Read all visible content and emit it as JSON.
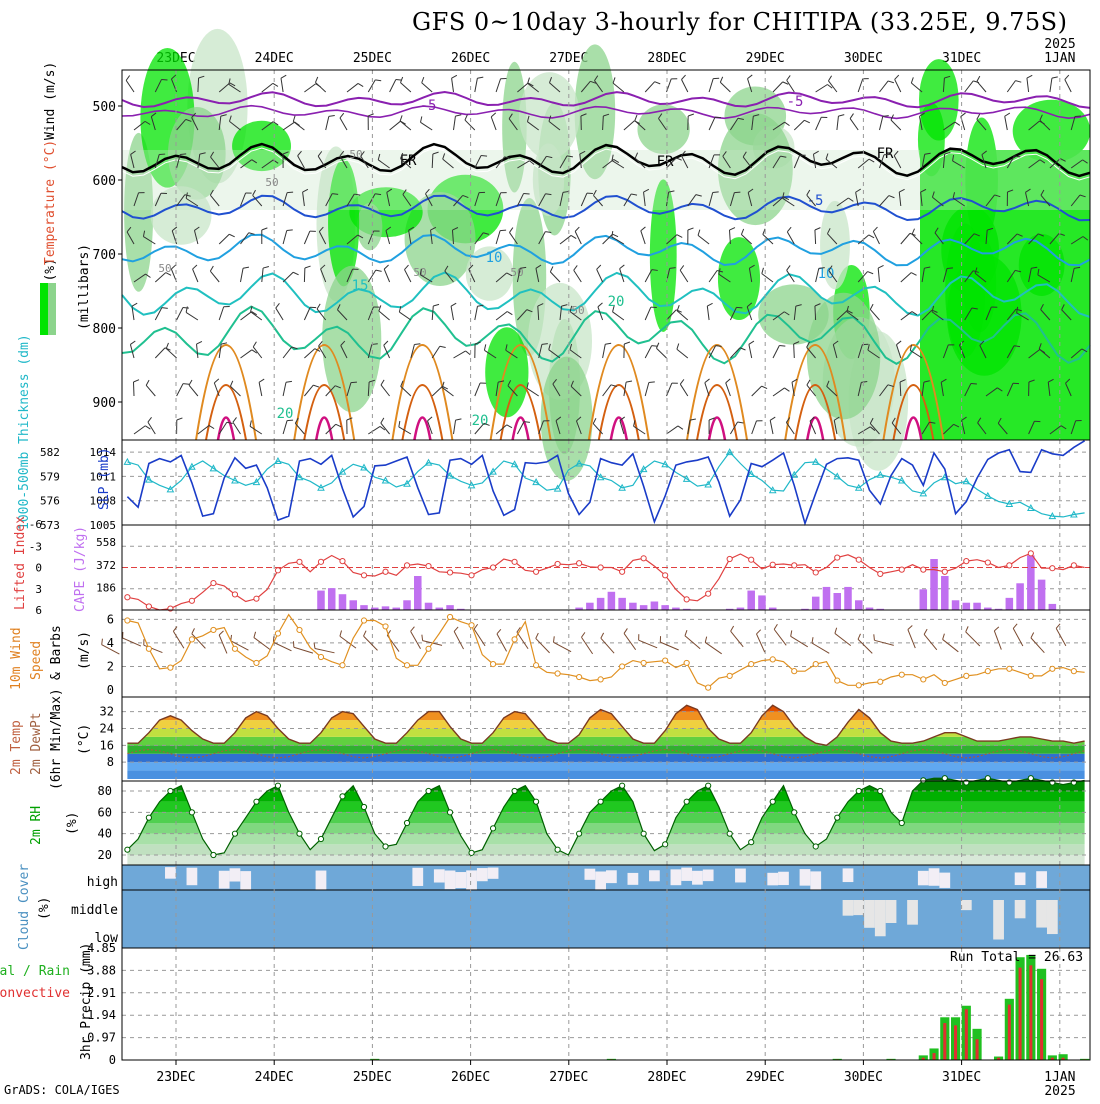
{
  "title": "GFS 0~10day 3-hourly for CHITIPA (33.25E, 9.75S)",
  "credit": "GrADS: COLA/IGES",
  "top_year": "2025",
  "bottom_year": "2025",
  "dates": [
    "23DEC",
    "24DEC",
    "25DEC",
    "26DEC",
    "27DEC",
    "28DEC",
    "29DEC",
    "30DEC",
    "31DEC",
    "1JAN"
  ],
  "colors": {
    "grid": "#999999",
    "rh_dark": "#00e400",
    "rh_mid": "#8cd48c",
    "rh_light": "#c8e6c8",
    "slp": "#1a3cc8",
    "thick": "#20b8c8",
    "cape": "#c070f0",
    "li": "#e04040",
    "wind": "#e09020",
    "tmax": "#e05000",
    "rh2m": "#00c000",
    "cloud": "#6fa8d8",
    "precip_total": "#20c020",
    "precip_conv": "#e03030"
  },
  "panels": {
    "upper": {
      "ylabel_parts": [
        "RH (%)",
        "Temperature (°C)",
        "Wind (m/s)"
      ],
      "ylabel_unit": "(millibars)",
      "yticks": [
        "500",
        "600",
        "700",
        "800",
        "900"
      ],
      "contour_labels": [
        "-5",
        "-5",
        "FR",
        "FR",
        "FR",
        "-5",
        "10",
        "15",
        "20",
        "10",
        "20",
        "20",
        "50",
        "50",
        "50",
        "50",
        "50",
        "50"
      ]
    },
    "slp": {
      "ylabel_left": "1000-500mb Thickness (dm)",
      "ylabel_right": "SLP (mb)",
      "ticks_left": [
        "582",
        "579",
        "576",
        "573"
      ],
      "ticks_right": [
        "1014",
        "1011",
        "1008",
        "1005"
      ]
    },
    "cape": {
      "ylabel_left": "Lifted Index",
      "ylabel_right": "CAPE (J/kg)",
      "ticks_left": [
        "-3",
        "0",
        "3",
        "6"
      ],
      "ticks_right": [
        "558",
        "372",
        "186"
      ],
      "top_tick": "-6"
    },
    "wind": {
      "ylabel": [
        "10m Wind",
        "Speed",
        "& Barbs"
      ],
      "unit": "(m/s)",
      "yticks": [
        "6",
        "4",
        "2",
        "0"
      ]
    },
    "temp": {
      "ylabel": [
        "2m Temp",
        "2m DewPt",
        "(6hr Min/Max)"
      ],
      "unit": "(°C)",
      "yticks": [
        "32",
        "24",
        "16",
        "8"
      ]
    },
    "rh": {
      "ylabel": "2m RH",
      "unit": "(%)",
      "yticks": [
        "80",
        "60",
        "40",
        "20"
      ]
    },
    "cloud": {
      "ylabel": "Cloud Cover",
      "unit": "(%)",
      "levels": [
        "high",
        "middle",
        "low"
      ]
    },
    "precip": {
      "ylabel_left": [
        "Total / Rain",
        "Convective"
      ],
      "ylabel_right": "3hr Precip (mm)",
      "yticks": [
        "4.85",
        "3.88",
        "2.91",
        "1.94",
        "0.97",
        "0"
      ],
      "run_total": "Run Total = 26.63"
    }
  },
  "chart_data": [
    {
      "type": "line",
      "name": "SLP",
      "ylabel": "SLP (mb)",
      "ylim": [
        1005,
        1015.5
      ],
      "x_step_hours": 3,
      "values": [
        1008.5,
        1007.2,
        1012.6,
        1013.2,
        1012.8,
        1013.6,
        1010.2,
        1006.1,
        1006.4,
        1010.8,
        1013.3,
        1012.0,
        1012.4,
        1009.6,
        1005.6,
        1006.1,
        1012.9,
        1013.2,
        1012.5,
        1013.6,
        1009.5,
        1006.0,
        1007.3,
        1012.3,
        1012.4,
        1012.9,
        1013.4,
        1009.6,
        1006.3,
        1006.5,
        1013.0,
        1013.2,
        1012.5,
        1013.6,
        1009.2,
        1006.2,
        1006.9,
        1012.7,
        1012.6,
        1012.8,
        1013.6,
        1008.9,
        1006.3,
        1007.8,
        1013.2,
        1012.7,
        1012.4,
        1013.8,
        1009.8,
        1005.4,
        1008.6,
        1012.4,
        1012.8,
        1013.0,
        1013.4,
        1010.3,
        1006.1,
        1008.1,
        1012.6,
        1012.2,
        1013.0,
        1013.9,
        1009.9,
        1005.2,
        1008.9,
        1012.5,
        1013.2,
        1013.3,
        1013.0,
        1009.3,
        1007.6,
        1011.1,
        1013.2,
        1012.4,
        1009.9,
        1013.9,
        1011.9,
        1006.4,
        1007.9,
        1010.8,
        1013.1,
        1013.9,
        1014.3,
        1011.6,
        1011.5,
        1014.3,
        1013.8,
        1013.6,
        1014.6,
        1015.4
      ]
    },
    {
      "type": "line",
      "name": "1000-500mb Thickness",
      "ylabel": "1000-500mb Thickness (dm)",
      "ylim": [
        573,
        583.5
      ],
      "values": [
        580.8,
        580.4,
        578.6,
        577.9,
        577.4,
        578.5,
        580.2,
        580.9,
        580.0,
        579.1,
        578.5,
        577.9,
        578.3,
        579.9,
        580.9,
        580.5,
        578.9,
        578.4,
        577.6,
        578.2,
        579.6,
        580.5,
        580.1,
        578.9,
        578.5,
        577.7,
        578.1,
        579.6,
        580.7,
        580.4,
        579.1,
        578.4,
        577.9,
        578.2,
        579.6,
        580.9,
        580.5,
        578.8,
        578.3,
        577.3,
        577.5,
        579.8,
        580.6,
        580.3,
        578.9,
        578.5,
        577.6,
        577.9,
        579.9,
        580.9,
        580.5,
        579.5,
        578.7,
        577.8,
        578.0,
        580.2,
        582.0,
        580.6,
        579.3,
        578.5,
        577.3,
        577.2,
        579.2,
        580.7,
        580.8,
        579.9,
        579.0,
        577.9,
        577.6,
        578.6,
        579.2,
        578.9,
        578.5,
        577.2,
        576.9,
        578.2,
        578.9,
        578.1,
        578.4,
        577.4,
        576.6,
        575.9,
        575.6,
        575.8,
        575.1,
        574.4,
        574.1,
        574.0,
        574.3,
        574.5
      ]
    },
    {
      "type": "line",
      "name": "Lifted Index",
      "ylabel": "Lifted Index",
      "ylim": [
        -6,
        6
      ],
      "values": [
        4.2,
        4.5,
        5.5,
        6.0,
        5.8,
        5.1,
        4.7,
        3.5,
        2.2,
        2.6,
        3.8,
        4.8,
        4.4,
        3.1,
        0.4,
        -0.6,
        -0.8,
        0.6,
        -0.8,
        -1.7,
        -0.9,
        0.7,
        1.1,
        1.2,
        0.6,
        1.1,
        -0.3,
        -0.5,
        -0.2,
        0.6,
        0.7,
        0.8,
        1.1,
        0.3,
        0.0,
        -1.2,
        -0.8,
        0.4,
        0.6,
        0.1,
        -0.5,
        -0.4,
        -0.6,
        -0.1,
        0.0,
        0.0,
        0.6,
        -1.0,
        -1.3,
        -0.2,
        1.1,
        3.1,
        4.5,
        4.7,
        3.7,
        1.6,
        -1.2,
        -1.9,
        -1.1,
        0.2,
        -0.4,
        -0.5,
        -0.3,
        -0.4,
        0.7,
        0.0,
        -1.4,
        -1.8,
        -1.1,
        0.0,
        0.9,
        0.6,
        0.3,
        -0.4,
        0.3,
        0.3,
        0.6,
        0.1,
        -0.9,
        -1.1,
        -0.7,
        0.0,
        -0.3,
        -1.4,
        -2.0,
        0.1,
        0.1,
        0.3,
        -0.3,
        0.0
      ]
    },
    {
      "type": "bar",
      "name": "CAPE",
      "ylabel": "CAPE (J/kg)",
      "ylim": [
        0,
        700
      ],
      "values": [
        0,
        0,
        0,
        0,
        0,
        0,
        0,
        0,
        0,
        0,
        0,
        0,
        0,
        0,
        0,
        0,
        0,
        0,
        160,
        180,
        130,
        80,
        40,
        20,
        30,
        20,
        80,
        280,
        60,
        20,
        40,
        10,
        0,
        0,
        0,
        0,
        0,
        0,
        0,
        0,
        0,
        0,
        20,
        60,
        100,
        150,
        100,
        60,
        40,
        70,
        40,
        20,
        10,
        0,
        0,
        0,
        10,
        20,
        160,
        120,
        20,
        0,
        0,
        10,
        110,
        190,
        140,
        190,
        80,
        20,
        10,
        0,
        0,
        0,
        170,
        420,
        280,
        80,
        60,
        60,
        20,
        10,
        100,
        220,
        450,
        250,
        50,
        0,
        0,
        0
      ]
    },
    {
      "type": "line",
      "name": "10m Wind Speed",
      "ylabel": "Speed (m/s)",
      "ylim": [
        0,
        7
      ],
      "values": [
        5.9,
        5.7,
        3.5,
        1.8,
        1.9,
        2.5,
        4.3,
        4.6,
        5.1,
        5.3,
        3.5,
        2.8,
        2.3,
        2.9,
        4.8,
        6.4,
        5.1,
        3.6,
        2.8,
        2.4,
        2.1,
        4.4,
        5.9,
        5.9,
        5.4,
        2.7,
        2.1,
        2.1,
        3.5,
        4.8,
        6.2,
        5.8,
        5.5,
        3.0,
        2.2,
        2.2,
        4.3,
        5.8,
        2.1,
        1.5,
        1.4,
        1.3,
        1.1,
        0.8,
        0.9,
        1.1,
        2.0,
        2.5,
        2.3,
        2.4,
        2.5,
        1.9,
        2.3,
        0.6,
        0.2,
        1.0,
        1.2,
        1.7,
        2.2,
        2.5,
        2.6,
        2.4,
        1.6,
        1.6,
        2.2,
        2.4,
        0.8,
        0.4,
        0.4,
        0.6,
        0.7,
        1.1,
        1.3,
        1.3,
        0.9,
        1.3,
        0.6,
        0.9,
        1.2,
        1.3,
        1.6,
        1.8,
        1.8,
        1.5,
        1.2,
        1.2,
        1.8,
        1.9,
        1.6,
        1.5
      ]
    },
    {
      "type": "area",
      "name": "2m Temperature",
      "ylabel": "2m Temp (°C)",
      "ylim": [
        0,
        38
      ],
      "values": [
        17,
        17,
        22,
        28,
        30,
        28,
        23,
        19,
        17,
        17,
        22,
        29,
        32,
        30,
        24,
        19,
        17,
        17,
        22,
        29,
        32,
        31,
        25,
        19,
        17,
        17,
        22,
        28,
        32,
        32,
        25,
        19,
        17,
        17,
        22,
        29,
        32,
        31,
        25,
        19,
        17,
        17,
        21,
        29,
        33,
        31,
        25,
        19,
        17,
        17,
        23,
        31,
        35,
        33,
        24,
        19,
        17,
        17,
        22,
        30,
        35,
        32,
        25,
        20,
        17,
        16,
        20,
        27,
        33,
        29,
        22,
        18,
        17,
        17,
        18,
        20,
        22,
        22,
        20,
        18,
        18,
        18,
        19,
        20,
        20,
        19,
        18,
        18,
        17,
        18
      ]
    },
    {
      "type": "area",
      "name": "2m RH",
      "ylabel": "2m RH (%)",
      "ylim": [
        0,
        100
      ],
      "values": [
        25,
        35,
        55,
        70,
        80,
        85,
        60,
        35,
        20,
        22,
        40,
        55,
        70,
        80,
        85,
        60,
        40,
        25,
        35,
        55,
        75,
        85,
        65,
        40,
        28,
        30,
        50,
        70,
        80,
        85,
        60,
        38,
        22,
        25,
        45,
        65,
        80,
        85,
        70,
        40,
        25,
        20,
        40,
        60,
        70,
        80,
        85,
        70,
        40,
        24,
        30,
        55,
        70,
        80,
        85,
        65,
        40,
        25,
        32,
        55,
        70,
        85,
        60,
        40,
        28,
        35,
        55,
        70,
        80,
        85,
        80,
        60,
        50,
        80,
        90,
        92,
        92,
        90,
        88,
        90,
        92,
        90,
        88,
        90,
        92,
        90,
        88,
        86,
        88,
        90
      ]
    },
    {
      "type": "bar",
      "name": "3hr Precip Total",
      "ylabel": "3hr Precip (mm)",
      "ylim": [
        0,
        4.85
      ],
      "values": [
        0,
        0,
        0,
        0,
        0,
        0,
        0,
        0,
        0,
        0,
        0,
        0,
        0,
        0,
        0,
        0,
        0,
        0,
        0,
        0,
        0,
        0,
        0,
        0.05,
        0,
        0,
        0,
        0,
        0,
        0,
        0,
        0,
        0,
        0,
        0,
        0,
        0,
        0,
        0,
        0,
        0,
        0,
        0,
        0,
        0,
        0.05,
        0,
        0,
        0,
        0,
        0,
        0,
        0,
        0,
        0,
        0,
        0,
        0,
        0,
        0,
        0,
        0,
        0,
        0,
        0,
        0,
        0.05,
        0,
        0,
        0,
        0,
        0.05,
        0,
        0,
        0.2,
        0.5,
        1.85,
        1.85,
        2.35,
        1.35,
        0,
        0.15,
        2.65,
        4.45,
        4.55,
        3.95,
        0.2,
        0.25,
        0,
        0.05
      ],
      "convective": [
        0,
        0,
        0,
        0,
        0,
        0,
        0,
        0,
        0,
        0,
        0,
        0,
        0,
        0,
        0,
        0,
        0,
        0,
        0,
        0,
        0,
        0,
        0,
        0.03,
        0,
        0,
        0,
        0,
        0,
        0,
        0,
        0,
        0,
        0,
        0,
        0,
        0,
        0,
        0,
        0,
        0,
        0,
        0,
        0,
        0,
        0.03,
        0,
        0,
        0,
        0,
        0,
        0,
        0,
        0,
        0,
        0,
        0,
        0,
        0,
        0,
        0,
        0,
        0,
        0,
        0,
        0,
        0.03,
        0,
        0,
        0,
        0,
        0.03,
        0,
        0,
        0.1,
        0.3,
        1.6,
        1.5,
        2.2,
        0.9,
        0,
        0.1,
        2.4,
        4.0,
        4.1,
        3.5,
        0.1,
        0.1,
        0,
        0.03
      ]
    }
  ]
}
